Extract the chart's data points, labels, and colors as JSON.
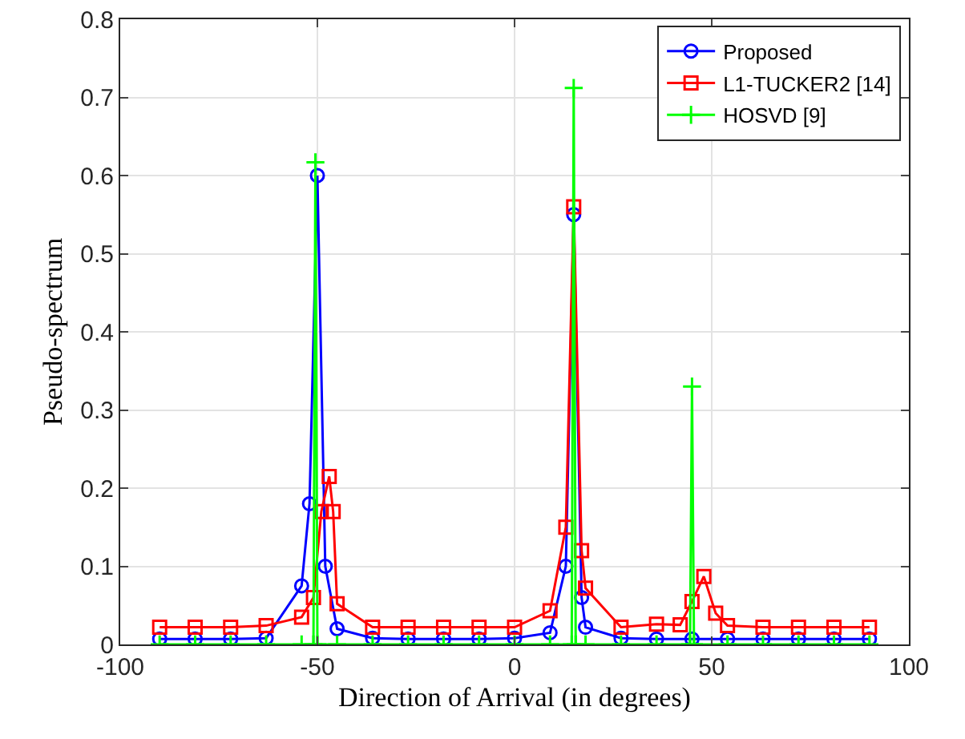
{
  "chart_data": {
    "type": "line",
    "xlabel": "Direction of Arrival (in degrees)",
    "ylabel": "Pseudo-spectrum",
    "xlim": [
      -100,
      100
    ],
    "xticks": [
      -100,
      -50,
      0,
      50,
      100
    ],
    "ylim": [
      0,
      0.8
    ],
    "yticks": [
      0,
      0.1,
      0.2,
      0.3,
      0.4,
      0.5,
      0.6,
      0.7,
      0.8
    ],
    "grid": true,
    "legend": "top right",
    "line_style": "solid",
    "series": [
      {
        "name": "Proposed",
        "color": "#0000ff",
        "marker": "circle",
        "x": [
          -90,
          -81,
          -72,
          -63,
          -54,
          -52,
          -50,
          -48,
          -45,
          -36,
          -27,
          -18,
          -9,
          0,
          9,
          13,
          15,
          17,
          18,
          27,
          36,
          45,
          54,
          63,
          72,
          81,
          90
        ],
        "values": [
          0.007,
          0.007,
          0.007,
          0.008,
          0.075,
          0.18,
          0.6,
          0.1,
          0.02,
          0.008,
          0.007,
          0.007,
          0.007,
          0.008,
          0.015,
          0.1,
          0.55,
          0.06,
          0.022,
          0.008,
          0.007,
          0.007,
          0.007,
          0.007,
          0.007,
          0.007,
          0.007
        ]
      },
      {
        "name": "L1-TUCKER2 [14]",
        "color": "#ff0000",
        "marker": "square",
        "x": [
          -90,
          -81,
          -72,
          -63,
          -54,
          -51,
          -49,
          -47,
          -46,
          -45,
          -36,
          -27,
          -18,
          -9,
          0,
          9,
          13,
          15,
          17,
          18,
          27,
          36,
          42,
          45,
          48,
          51,
          54,
          63,
          72,
          81,
          90
        ],
        "values": [
          0.022,
          0.022,
          0.022,
          0.024,
          0.035,
          0.06,
          0.17,
          0.215,
          0.17,
          0.052,
          0.022,
          0.022,
          0.022,
          0.022,
          0.022,
          0.043,
          0.15,
          0.56,
          0.12,
          0.072,
          0.022,
          0.026,
          0.025,
          0.055,
          0.087,
          0.04,
          0.024,
          0.022,
          0.022,
          0.022,
          0.022
        ]
      },
      {
        "name": "HOSVD [9]",
        "color": "#00ff00",
        "marker": "cross",
        "x": [
          -90,
          -81,
          -72,
          -63,
          -54,
          -51,
          -50.5,
          -50,
          -45,
          -36,
          -27,
          -18,
          -9,
          0,
          9,
          14.5,
          15,
          15.5,
          18,
          27,
          36,
          44.5,
          45,
          45.5,
          54,
          63,
          72,
          81,
          90
        ],
        "values": [
          0,
          0,
          0,
          0,
          0,
          0,
          0.617,
          0,
          0,
          0,
          0,
          0,
          0,
          0,
          0,
          0,
          0.712,
          0,
          0,
          0,
          0,
          0,
          0.33,
          0,
          0,
          0,
          0,
          0,
          0
        ]
      }
    ]
  }
}
